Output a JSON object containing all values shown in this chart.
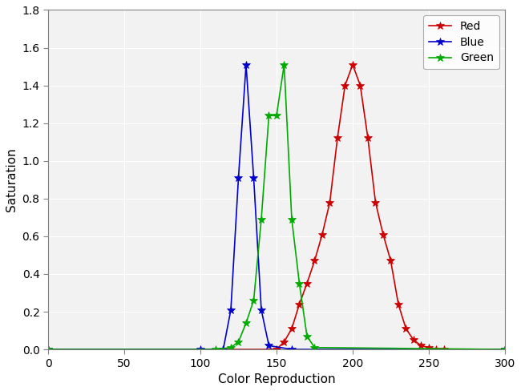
{
  "xlabel": "Color Reproduction",
  "ylabel": "Saturation",
  "xlim": [
    0,
    300
  ],
  "ylim": [
    0,
    1.8
  ],
  "xticks": [
    0,
    50,
    100,
    150,
    200,
    250,
    300
  ],
  "yticks": [
    0,
    0.2,
    0.4,
    0.6,
    0.8,
    1.0,
    1.2,
    1.4,
    1.6,
    1.8
  ],
  "blue_x": [
    0,
    100,
    115,
    120,
    125,
    130,
    135,
    140,
    145,
    160,
    300
  ],
  "blue_y": [
    0,
    0,
    0,
    0.21,
    0.91,
    1.51,
    0.91,
    0.21,
    0.02,
    0,
    0
  ],
  "green_x": [
    0,
    110,
    120,
    125,
    130,
    135,
    140,
    145,
    150,
    155,
    160,
    165,
    170,
    175,
    300
  ],
  "green_y": [
    0,
    0,
    0.01,
    0.04,
    0.14,
    0.26,
    0.69,
    1.24,
    1.24,
    1.51,
    0.69,
    0.35,
    0.07,
    0.01,
    0
  ],
  "red_x": [
    0,
    150,
    155,
    160,
    165,
    170,
    175,
    180,
    185,
    190,
    195,
    200,
    205,
    210,
    215,
    220,
    225,
    230,
    235,
    240,
    245,
    250,
    255,
    260,
    300
  ],
  "red_y": [
    0,
    0,
    0.04,
    0.11,
    0.24,
    0.35,
    0.47,
    0.61,
    0.78,
    1.12,
    1.4,
    1.51,
    1.4,
    1.12,
    0.78,
    0.61,
    0.47,
    0.24,
    0.11,
    0.05,
    0.02,
    0.01,
    0,
    0,
    0
  ],
  "red_color": "#cc0000",
  "blue_color": "#0000cc",
  "green_color": "#00aa00",
  "red_label": "Red",
  "blue_label": "Blue",
  "green_label": "Green",
  "legend_loc": "upper right",
  "figsize": [
    6.5,
    4.88
  ],
  "dpi": 100,
  "bg_color": "#ffffff",
  "axes_bg": "#f2f2f2",
  "grid_color": "#ffffff",
  "spine_color": "#808080"
}
